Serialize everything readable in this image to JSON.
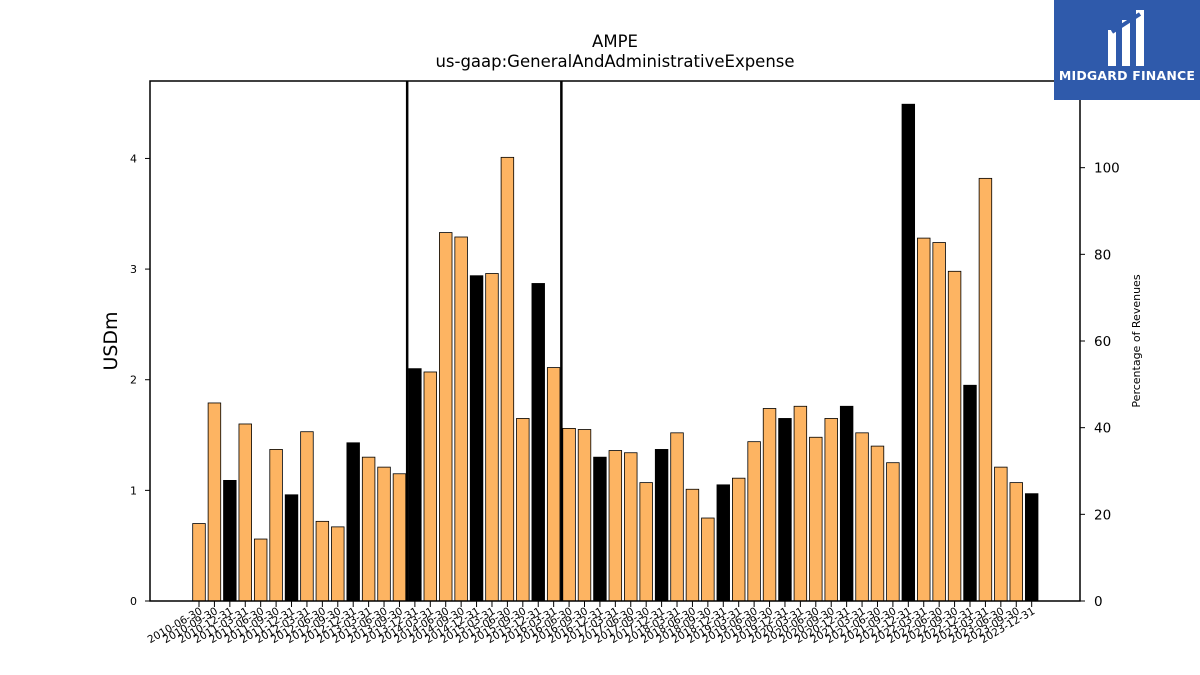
{
  "chart_data": {
    "type": "bar",
    "title": "AMPE",
    "subtitle": "us-gaap:GeneralAndAdministrativeExpense",
    "ylabel": "USDm",
    "y2label": "Percentage of Revenues",
    "ylim": [
      0,
      4.7
    ],
    "y2lim": [
      0,
      120
    ],
    "yticks": [
      0,
      1,
      2,
      3,
      4
    ],
    "y2ticks": [
      0,
      20,
      40,
      60,
      80,
      100
    ],
    "grid": false,
    "bar_color": "#fdb462",
    "highlight_color": "#000000",
    "vertical_line_categories": [
      "2013-09-30",
      "2016-03-31"
    ],
    "categories": [
      "2010-06-30",
      "2010-09-30",
      "2010-12-31",
      "2011-03-31",
      "2011-06-30",
      "2011-09-30",
      "2011-12-31",
      "2012-03-31",
      "2012-06-30",
      "2012-09-30",
      "2012-12-31",
      "2013-03-31",
      "2013-06-30",
      "2013-09-30",
      "2013-12-31",
      "2014-03-31",
      "2014-06-30",
      "2014-09-30",
      "2014-12-31",
      "2015-03-31",
      "2015-06-30",
      "2015-09-30",
      "2015-12-31",
      "2016-03-31",
      "2016-06-30",
      "2016-09-30",
      "2016-12-31",
      "2017-03-31",
      "2017-06-30",
      "2017-09-30",
      "2017-12-31",
      "2018-03-31",
      "2018-06-30",
      "2018-09-30",
      "2018-12-31",
      "2019-03-31",
      "2019-06-30",
      "2019-09-30",
      "2019-12-31",
      "2020-03-31",
      "2020-06-30",
      "2020-09-30",
      "2020-12-31",
      "2021-03-31",
      "2021-06-30",
      "2021-09-30",
      "2021-12-31",
      "2022-03-31",
      "2022-06-30",
      "2022-09-30",
      "2022-12-31",
      "2023-03-31",
      "2023-06-30",
      "2023-09-30",
      "2023-12-31"
    ],
    "values": [
      0.7,
      1.79,
      1.09,
      1.6,
      0.56,
      1.37,
      0.96,
      1.53,
      0.72,
      0.67,
      1.43,
      1.3,
      1.21,
      1.15,
      2.1,
      2.07,
      3.33,
      3.29,
      2.94,
      2.96,
      4.01,
      1.65,
      2.87,
      2.11,
      1.56,
      1.55,
      1.3,
      1.36,
      1.34,
      1.07,
      1.37,
      1.52,
      1.01,
      0.75,
      1.05,
      1.11,
      1.44,
      1.74,
      1.65,
      1.76,
      1.48,
      1.65,
      1.76,
      1.52,
      1.4,
      1.25,
      4.49,
      3.28,
      3.24,
      2.98,
      1.95,
      3.82,
      1.21,
      1.07,
      0.97
    ],
    "highlighted": [
      "2010-12-31",
      "2011-12-31",
      "2012-12-31",
      "2013-12-31",
      "2014-12-31",
      "2015-12-31",
      "2016-12-31",
      "2017-12-31",
      "2018-12-31",
      "2019-12-31",
      "2020-12-31",
      "2021-12-31",
      "2022-12-31",
      "2023-12-31"
    ]
  },
  "logo": {
    "text": "MIDGARD FINANCE",
    "background": "#2f5aab"
  }
}
